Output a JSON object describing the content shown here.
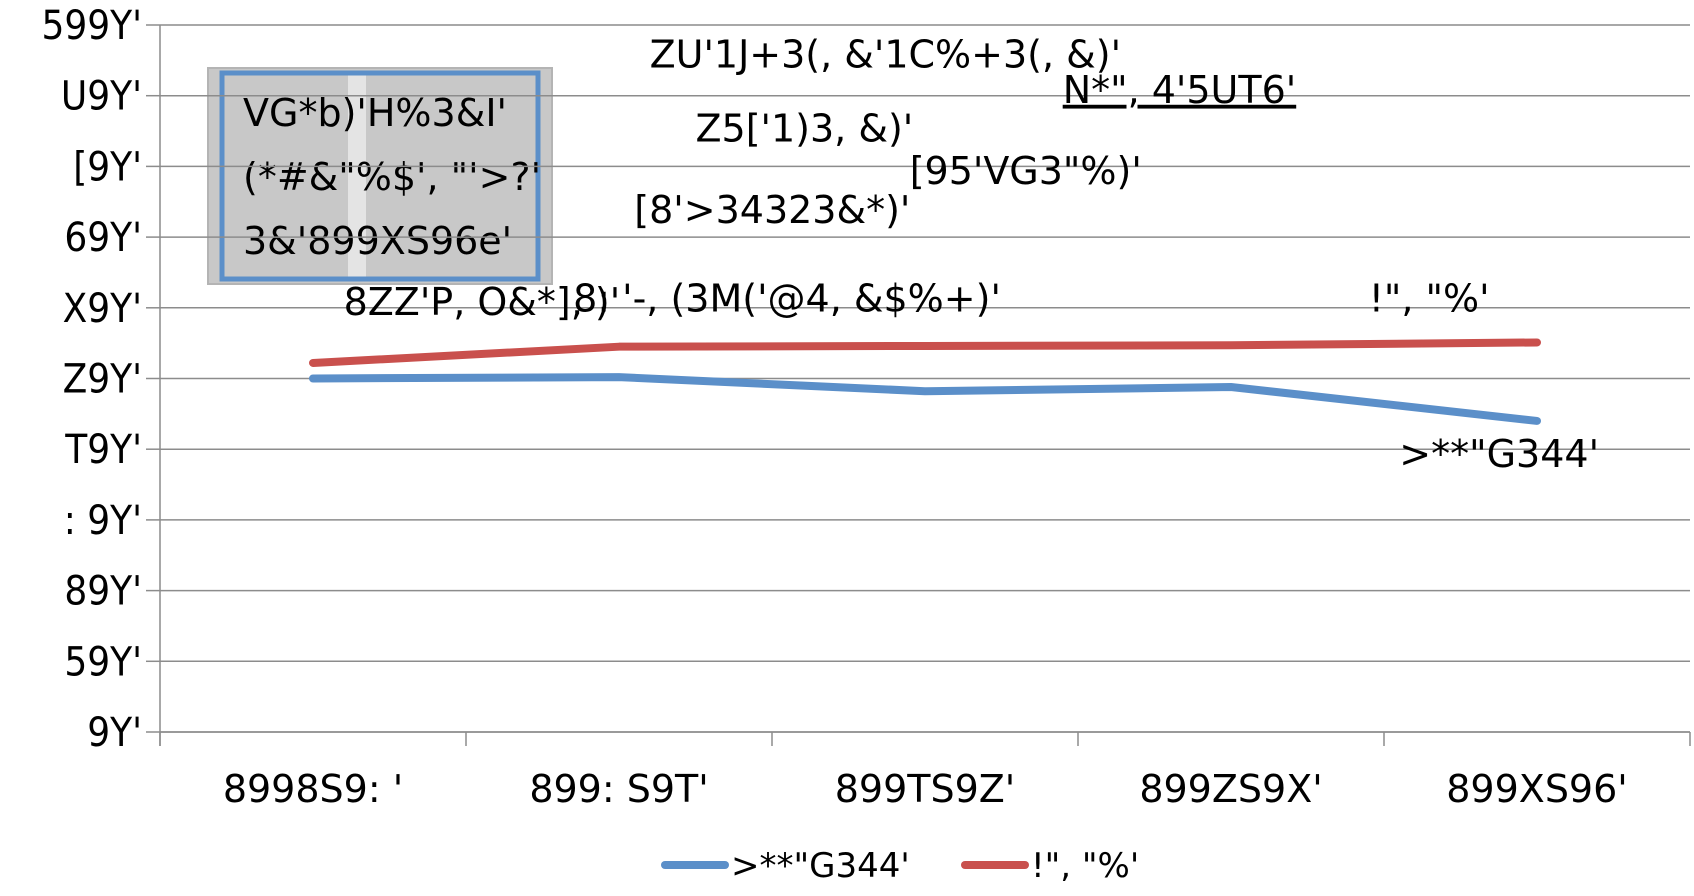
{
  "chart_data": {
    "type": "line",
    "categories": [
      "8998S9: '",
      "899: S9T'",
      "899TS9Z'",
      "899ZS9X'",
      "899XS96'"
    ],
    "series": [
      {
        "name": ">**\"G344'",
        "color": "#5b8fc9",
        "values": [
          50.0,
          50.2,
          48.2,
          48.8,
          44.0
        ]
      },
      {
        "name": "!\", \"%'",
        "color": "#c9504d",
        "values": [
          52.2,
          54.5,
          54.6,
          54.7,
          55.1
        ]
      }
    ],
    "ylim": [
      0,
      100
    ],
    "yticks": [
      {
        "value": 0,
        "label": "9Y'"
      },
      {
        "value": 10,
        "label": "59Y'"
      },
      {
        "value": 20,
        "label": "89Y'"
      },
      {
        "value": 30,
        "label": ": 9Y'"
      },
      {
        "value": 40,
        "label": "T9Y'"
      },
      {
        "value": 50,
        "label": "Z9Y'"
      },
      {
        "value": 60,
        "label": "X9Y'"
      },
      {
        "value": 70,
        "label": "69Y'"
      },
      {
        "value": 80,
        "label": "[9Y'"
      },
      {
        "value": 90,
        "label": "U9Y'"
      },
      {
        "value": 100,
        "label": "599Y'"
      }
    ],
    "grid": true,
    "legend": "bottom",
    "highlight_box": {
      "lines": [
        "VG*b)'H%3&I'",
        "(*#&\"%$', \"'>?'",
        "3&'899XS96e'"
      ]
    },
    "annotations": [
      {
        "text": "ZU'1J+3(, &'1C%+3(, &)'",
        "x": 1.6,
        "y": 94
      },
      {
        "text": "N*\", 4'5UT6'",
        "x": 2.95,
        "y": 89,
        "underline": true
      },
      {
        "text": "Z5['1)3, &)'",
        "x": 1.75,
        "y": 83.5
      },
      {
        "text": "[95'VG3\"%)'",
        "x": 2.45,
        "y": 77.5
      },
      {
        "text": "[8'>34323&*)'",
        "x": 1.55,
        "y": 72
      },
      {
        "text": "8ZZ'P, O&*], )'",
        "x": 0.6,
        "y": 59
      },
      {
        "text": "8: '-, (3M('@4, &$%+)'",
        "x": 1.35,
        "y": 59.5
      },
      {
        "text": "!\", \"%'",
        "x": 3.95,
        "y": 59.5
      },
      {
        "text": ">**\"G344'",
        "x": 4.05,
        "y": 37.5
      }
    ]
  }
}
